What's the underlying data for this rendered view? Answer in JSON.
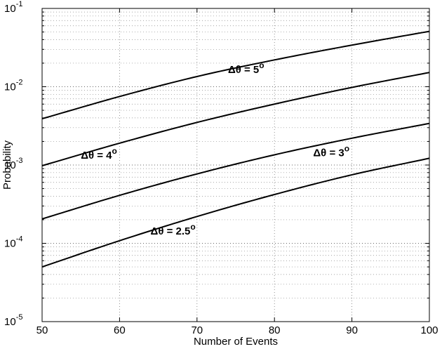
{
  "chart_data": {
    "type": "line",
    "title": "",
    "xlabel": "Number of Events",
    "ylabel": "Probability",
    "xlim": [
      50,
      100
    ],
    "ylim": [
      1e-05,
      0.1
    ],
    "yscale": "log",
    "grid": true,
    "minor_grid": true,
    "x_ticks": [
      50,
      60,
      70,
      80,
      90,
      100
    ],
    "x_tick_labels": [
      "50",
      "60",
      "70",
      "80",
      "90",
      "100"
    ],
    "y_ticks": [
      1e-05,
      0.0001,
      0.001,
      0.01,
      0.1
    ],
    "y_tick_labels": [
      {
        "base": "10",
        "exp": "-5"
      },
      {
        "base": "10",
        "exp": "-4"
      },
      {
        "base": "10",
        "exp": "-3"
      },
      {
        "base": "10",
        "exp": "-2"
      },
      {
        "base": "10",
        "exp": "-1"
      }
    ],
    "x": [
      50,
      60,
      70,
      80,
      90,
      100
    ],
    "series": [
      {
        "label": {
          "main": "Δθ = 5",
          "sup": "o"
        },
        "values": [
          0.0039,
          0.0075,
          0.0135,
          0.022,
          0.034,
          0.051
        ],
        "color": "#000000"
      },
      {
        "label": {
          "main": "Δθ = 4",
          "sup": "o"
        },
        "values": [
          0.00098,
          0.0019,
          0.0035,
          0.006,
          0.0098,
          0.0152
        ],
        "color": "#000000"
      },
      {
        "label": {
          "main": "Δθ = 3",
          "sup": "o"
        },
        "values": [
          0.000205,
          0.00041,
          0.00077,
          0.00135,
          0.0022,
          0.0034
        ],
        "color": "#000000"
      },
      {
        "label": {
          "main": "Δθ = 2.5",
          "sup": "o"
        },
        "values": [
          5e-05,
          0.000108,
          0.00022,
          0.00042,
          0.00075,
          0.00122
        ],
        "color": "#000000"
      }
    ],
    "annotations": [
      {
        "series": 0,
        "x": 74,
        "y": 0.015
      },
      {
        "series": 1,
        "x": 55,
        "y": 0.0012
      },
      {
        "series": 2,
        "x": 85,
        "y": 0.0013
      },
      {
        "series": 3,
        "x": 64,
        "y": 0.00013
      }
    ]
  }
}
